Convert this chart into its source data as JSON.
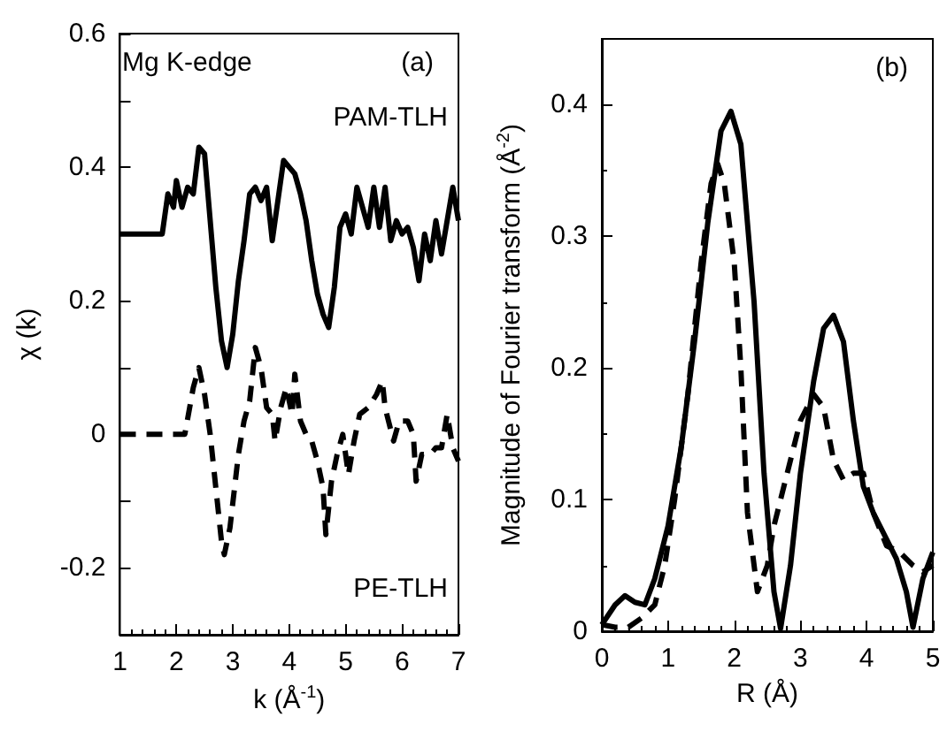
{
  "chart_data": [
    {
      "type": "line",
      "xlabel": "k (Å$^{-1}$)",
      "ylabel": "χ (k)",
      "xlim": [
        1,
        7
      ],
      "xticks": [
        1,
        2,
        3,
        4,
        5,
        6,
        7
      ],
      "ylim": [
        -0.3,
        0.6
      ],
      "yticks": [
        {
          "value": -0.3,
          "label": null
        },
        -0.2,
        {
          "value": -0.1,
          "label": null
        },
        0,
        {
          "value": 0.1,
          "label": null
        },
        0.2,
        {
          "value": 0.3,
          "label": null
        },
        0.4,
        {
          "value": 0.5,
          "label": null
        },
        0.6
      ],
      "grid": false,
      "marker": "none",
      "annotations": [
        "Mg K-edge",
        "(a)"
      ],
      "series": [
        {
          "name": "PAM-TLH",
          "color": "#000000",
          "line_style": "solid",
          "x": [
            1.0,
            1.75,
            1.85,
            1.95,
            2.0,
            2.1,
            2.2,
            2.3,
            2.4,
            2.5,
            2.6,
            2.7,
            2.8,
            2.9,
            3.0,
            3.1,
            3.2,
            3.3,
            3.4,
            3.5,
            3.6,
            3.7,
            3.8,
            3.9,
            4.0,
            4.1,
            4.2,
            4.3,
            4.4,
            4.5,
            4.6,
            4.7,
            4.8,
            4.9,
            5.0,
            5.1,
            5.2,
            5.3,
            5.4,
            5.5,
            5.6,
            5.7,
            5.8,
            5.9,
            6.0,
            6.1,
            6.2,
            6.3,
            6.4,
            6.5,
            6.6,
            6.7,
            6.8,
            6.9,
            7.0
          ],
          "values": [
            0.3,
            0.3,
            0.36,
            0.34,
            0.38,
            0.34,
            0.37,
            0.36,
            0.43,
            0.42,
            0.32,
            0.22,
            0.14,
            0.1,
            0.15,
            0.23,
            0.29,
            0.36,
            0.37,
            0.35,
            0.37,
            0.29,
            0.35,
            0.41,
            0.4,
            0.39,
            0.36,
            0.32,
            0.26,
            0.21,
            0.18,
            0.16,
            0.22,
            0.31,
            0.33,
            0.3,
            0.37,
            0.34,
            0.31,
            0.37,
            0.31,
            0.37,
            0.29,
            0.32,
            0.3,
            0.31,
            0.28,
            0.23,
            0.3,
            0.26,
            0.32,
            0.27,
            0.32,
            0.37,
            0.32
          ]
        },
        {
          "name": "PE-TLH",
          "color": "#000000",
          "line_style": "dashed",
          "x": [
            1.0,
            2.15,
            2.3,
            2.4,
            2.5,
            2.6,
            2.7,
            2.8,
            2.85,
            2.95,
            3.1,
            3.2,
            3.3,
            3.4,
            3.5,
            3.6,
            3.7,
            3.75,
            3.85,
            3.95,
            4.05,
            4.1,
            4.2,
            4.3,
            4.4,
            4.5,
            4.6,
            4.65,
            4.75,
            4.85,
            4.95,
            5.05,
            5.15,
            5.25,
            5.4,
            5.55,
            5.65,
            5.7,
            5.85,
            5.95,
            6.1,
            6.2,
            6.25,
            6.35,
            6.5,
            6.6,
            6.7,
            6.8,
            6.9,
            7.0
          ],
          "values": [
            0,
            0,
            0.07,
            0.1,
            0.06,
            0.0,
            -0.08,
            -0.16,
            -0.18,
            -0.14,
            -0.03,
            0.02,
            0.05,
            0.13,
            0.1,
            0.04,
            0.03,
            -0.01,
            0.04,
            0.07,
            0.03,
            0.09,
            0.02,
            0.0,
            -0.01,
            -0.04,
            -0.08,
            -0.15,
            -0.07,
            -0.03,
            0.0,
            -0.06,
            -0.01,
            0.03,
            0.04,
            0.06,
            0.08,
            0.04,
            -0.01,
            0.02,
            0.02,
            0.0,
            -0.07,
            -0.03,
            -0.03,
            -0.02,
            -0.02,
            0.03,
            -0.02,
            -0.04
          ]
        }
      ]
    },
    {
      "type": "line",
      "xlabel": "R (Å)",
      "ylabel": "Magnitude of Fourier transform (Å$^{-2}$)",
      "xlim": [
        0,
        5
      ],
      "xticks": [
        0,
        1,
        2,
        3,
        4,
        5
      ],
      "ylim": [
        0,
        0.45
      ],
      "yticks": [
        0,
        0.1,
        0.2,
        0.3,
        0.4
      ],
      "grid": false,
      "marker": "none",
      "annotations": [
        "(b)"
      ],
      "series": [
        {
          "color": "#000000",
          "line_style": "solid",
          "x": [
            0,
            0.2,
            0.35,
            0.5,
            0.65,
            0.8,
            1.0,
            1.2,
            1.4,
            1.6,
            1.8,
            1.95,
            2.1,
            2.3,
            2.45,
            2.6,
            2.7,
            2.85,
            3.0,
            3.2,
            3.35,
            3.5,
            3.65,
            3.8,
            3.95,
            4.1,
            4.3,
            4.45,
            4.6,
            4.7,
            4.85,
            5.0
          ],
          "values": [
            0.005,
            0.02,
            0.027,
            0.022,
            0.02,
            0.04,
            0.08,
            0.14,
            0.22,
            0.31,
            0.38,
            0.395,
            0.37,
            0.25,
            0.12,
            0.03,
            0.002,
            0.05,
            0.12,
            0.19,
            0.23,
            0.24,
            0.22,
            0.16,
            0.11,
            0.09,
            0.07,
            0.055,
            0.03,
            0.003,
            0.04,
            0.06
          ]
        },
        {
          "color": "#000000",
          "line_style": "dashed",
          "x": [
            0,
            0.2,
            0.4,
            0.6,
            0.8,
            0.95,
            1.1,
            1.3,
            1.5,
            1.65,
            1.75,
            1.85,
            2.0,
            2.1,
            2.2,
            2.35,
            2.5,
            2.6,
            2.8,
            3.0,
            3.2,
            3.35,
            3.5,
            3.65,
            3.8,
            3.95,
            4.1,
            4.3,
            4.5,
            4.7,
            4.85,
            5.0
          ],
          "values": [
            0.005,
            0.003,
            0.003,
            0.01,
            0.02,
            0.05,
            0.1,
            0.18,
            0.28,
            0.34,
            0.355,
            0.34,
            0.28,
            0.2,
            0.09,
            0.03,
            0.05,
            0.08,
            0.12,
            0.16,
            0.18,
            0.17,
            0.13,
            0.115,
            0.12,
            0.12,
            0.09,
            0.065,
            0.06,
            0.05,
            0.045,
            0.05
          ]
        }
      ]
    }
  ]
}
